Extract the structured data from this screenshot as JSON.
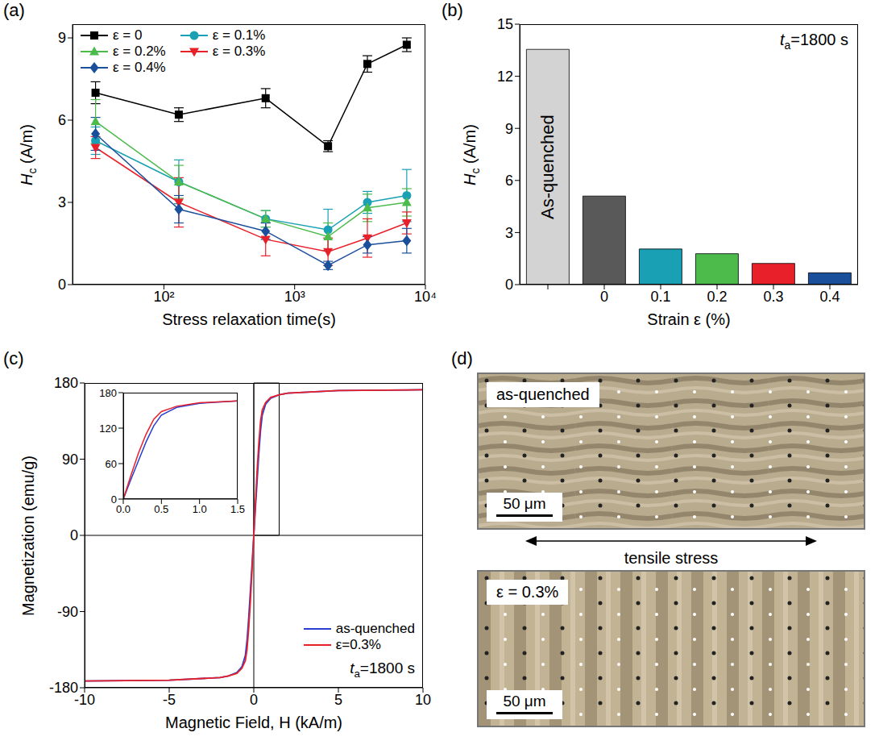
{
  "chart_data": [
    {
      "label": "(a)",
      "type": "line",
      "log": "x",
      "xlabel": "Stress relaxation time(s)",
      "ylabel": "Hc (A/m)",
      "x": [
        30,
        130,
        600,
        1800,
        3600,
        7200
      ],
      "xlim": [
        20,
        10000
      ],
      "xticks": [
        {
          "value": 100,
          "label": "10²"
        },
        {
          "value": 1000,
          "label": "10³"
        },
        {
          "value": 10000,
          "label": "10⁴"
        }
      ],
      "ylim": [
        0,
        9.5
      ],
      "yticks": [
        0,
        3,
        6,
        9
      ],
      "legend": "upper left",
      "series": [
        {
          "name": "ε = 0",
          "color": "#000000",
          "marker": "square",
          "values": [
            7.0,
            6.2,
            6.8,
            5.05,
            8.05,
            8.75
          ],
          "errors": [
            0.4,
            0.25,
            0.35,
            0.2,
            0.3,
            0.25
          ]
        },
        {
          "name": "ε = 0.1%",
          "color": "#1aa0b4",
          "marker": "circle",
          "values": [
            5.25,
            3.75,
            2.4,
            2.0,
            3.0,
            3.25
          ],
          "errors": [
            0.5,
            0.8,
            0.3,
            0.75,
            0.4,
            0.95
          ]
        },
        {
          "name": "ε = 0.2%",
          "color": "#4cbb4c",
          "marker": "triangle",
          "values": [
            5.95,
            3.75,
            2.4,
            1.75,
            2.8,
            3.0
          ],
          "errors": [
            0.8,
            0.6,
            0.3,
            0.5,
            0.5,
            0.5
          ]
        },
        {
          "name": "ε = 0.3%",
          "color": "#e8202a",
          "marker": "triangle-down",
          "values": [
            5.0,
            3.0,
            1.65,
            1.2,
            1.7,
            2.25
          ],
          "errors": [
            0.4,
            0.9,
            0.6,
            0.5,
            0.7,
            0.4
          ]
        },
        {
          "name": "ε = 0.4%",
          "color": "#1a4f9c",
          "marker": "diamond",
          "values": [
            5.5,
            2.75,
            1.95,
            0.7,
            1.45,
            1.6
          ],
          "errors": [
            0.6,
            0.5,
            0.3,
            0.15,
            0.3,
            0.45
          ]
        }
      ]
    },
    {
      "label": "(b)",
      "type": "bar",
      "xlabel": "Strain ε (%)",
      "ylabel": "Hc (A/m)",
      "annotation": "ta=1800 s",
      "categories": [
        null,
        "0",
        "0.1",
        "0.2",
        "0.3",
        "0.4"
      ],
      "values": [
        13.55,
        5.1,
        2.05,
        1.78,
        1.22,
        0.68
      ],
      "bar_labels": [
        "As-quenched",
        null,
        null,
        null,
        null,
        null
      ],
      "colors": [
        "#d3d3d3",
        "#595959",
        "#1aa0b4",
        "#4cbb4c",
        "#e8202a",
        "#1a4f9c"
      ],
      "ylim": [
        0,
        15
      ],
      "yticks": [
        0,
        3,
        6,
        9,
        12,
        15
      ]
    },
    {
      "label": "(c)",
      "type": "line",
      "xlabel": "Magnetic Field, H (kA/m)",
      "ylabel": "Magnetization (emu/g)",
      "annotation": "ta=1800 s",
      "x": [
        -10,
        -5,
        -2,
        -1.5,
        -1,
        -0.7,
        -0.5,
        -0.4,
        -0.3,
        -0.2,
        -0.1,
        0,
        0.1,
        0.2,
        0.3,
        0.4,
        0.5,
        0.7,
        1,
        1.5,
        2,
        5,
        10
      ],
      "xlim": [
        -10,
        10
      ],
      "xticks": [
        -10,
        -5,
        0,
        5,
        10
      ],
      "ylim": [
        -180,
        180
      ],
      "yticks": [
        -180,
        -90,
        0,
        90,
        180
      ],
      "legend": "lower right",
      "series": [
        {
          "name": "as-quenched",
          "color": "#2a3fd0",
          "values": [
            -172,
            -171,
            -168,
            -166,
            -162,
            -155,
            -142,
            -124,
            -97,
            -65,
            -33,
            0,
            33,
            65,
            97,
            124,
            142,
            155,
            162,
            166,
            168,
            171,
            172
          ]
        },
        {
          "name": "ε=0.3%",
          "color": "#e8202a",
          "values": [
            -172,
            -171,
            -168,
            -166,
            -163,
            -157,
            -148,
            -135,
            -110,
            -78,
            -40,
            0,
            40,
            78,
            110,
            135,
            148,
            157,
            163,
            166,
            168,
            171,
            172
          ]
        }
      ],
      "inset": {
        "xlim": [
          0,
          1.5
        ],
        "xticks": [
          {
            "value": 0,
            "label": "0.0"
          },
          0.5,
          {
            "value": 1,
            "label": "1.0"
          },
          1.5
        ],
        "ylim": [
          0,
          180
        ],
        "yticks": [
          0,
          60,
          120,
          180
        ]
      }
    }
  ],
  "micrographs": {
    "label": "(d)",
    "arrow_label": "tensile stress",
    "images": [
      {
        "label": "as-quenched",
        "scale_bar": "50 μm"
      },
      {
        "label": "ε = 0.3%",
        "scale_bar": "50 μm"
      }
    ]
  }
}
